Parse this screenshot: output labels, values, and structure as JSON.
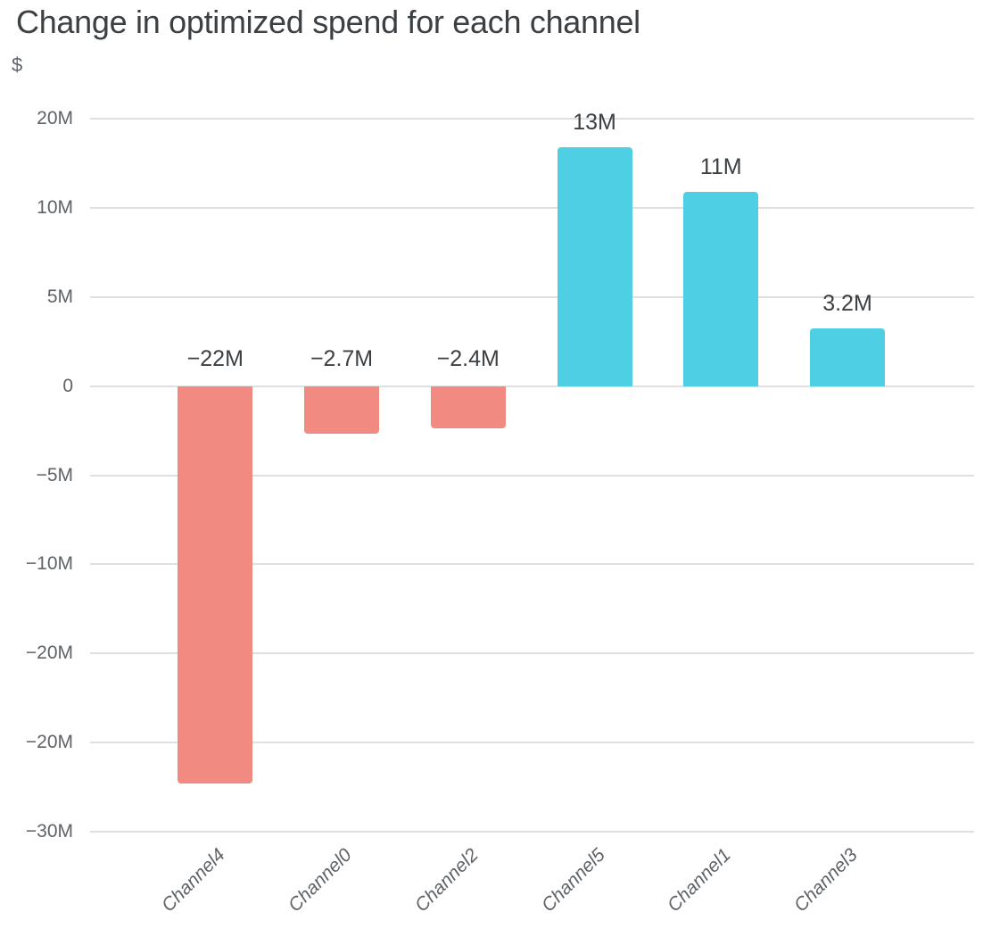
{
  "page": {
    "title": "Change in optimized spend for each channel",
    "axis_unit_label": "$"
  },
  "chart_data": {
    "type": "bar",
    "title": "Change in optimized spend for each channel",
    "ylabel": "$",
    "xlabel": "",
    "categories": [
      "Channel4",
      "Channel0",
      "Channel2",
      "Channel5",
      "Channel1",
      "Channel3"
    ],
    "values_usd_millions": [
      -22.3,
      -2.67,
      -2.37,
      13.4,
      10.9,
      3.23
    ],
    "bar_labels": [
      "−22M",
      "−2.7M",
      "−2.4M",
      "13M",
      "11M",
      "3.2M"
    ],
    "ytick_labels": [
      "20M",
      "10M",
      "5M",
      "0",
      "−5M",
      "−10M",
      "−20M",
      "−20M",
      "−30M"
    ],
    "ytick_values_millions": [
      15,
      10,
      5,
      0,
      -5,
      -10,
      -15,
      -20,
      -25
    ],
    "ylim_millions": [
      -27,
      16
    ],
    "grid": true,
    "legend_position": "none",
    "bar_label_position": "outside-end",
    "x_tick_rotation_deg": 45,
    "colors": {
      "positive_bar": "#4fcfe3",
      "negative_bar": "#f18b81",
      "gridline": "#e0e0e0",
      "tick_text": "#5f6368",
      "bar_label_text": "#3c4043",
      "title_text": "#3c4043"
    }
  }
}
